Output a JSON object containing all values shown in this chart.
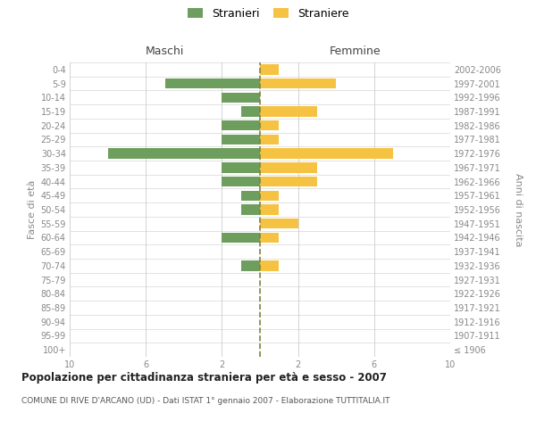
{
  "age_groups": [
    "100+",
    "95-99",
    "90-94",
    "85-89",
    "80-84",
    "75-79",
    "70-74",
    "65-69",
    "60-64",
    "55-59",
    "50-54",
    "45-49",
    "40-44",
    "35-39",
    "30-34",
    "25-29",
    "20-24",
    "15-19",
    "10-14",
    "5-9",
    "0-4"
  ],
  "birth_years": [
    "≤ 1906",
    "1907-1911",
    "1912-1916",
    "1917-1921",
    "1922-1926",
    "1927-1931",
    "1932-1936",
    "1937-1941",
    "1942-1946",
    "1947-1951",
    "1952-1956",
    "1957-1961",
    "1962-1966",
    "1967-1971",
    "1972-1976",
    "1977-1981",
    "1982-1986",
    "1987-1991",
    "1992-1996",
    "1997-2001",
    "2002-2006"
  ],
  "stranieri": [
    0,
    0,
    0,
    0,
    0,
    0,
    1,
    0,
    2,
    0,
    1,
    1,
    2,
    2,
    8,
    2,
    2,
    1,
    2,
    5,
    0
  ],
  "straniere": [
    0,
    0,
    0,
    0,
    0,
    0,
    1,
    0,
    1,
    2,
    1,
    1,
    3,
    3,
    7,
    1,
    1,
    3,
    0,
    4,
    1
  ],
  "stranieri_color": "#6e9e5e",
  "straniere_color": "#f5c242",
  "center_line_color": "#808040",
  "title": "Popolazione per cittadinanza straniera per età e sesso - 2007",
  "subtitle": "COMUNE DI RIVE D'ARCANO (UD) - Dati ISTAT 1° gennaio 2007 - Elaborazione TUTTITALIA.IT",
  "xlabel_left": "Maschi",
  "xlabel_right": "Femmine",
  "ylabel_left": "Fasce di età",
  "ylabel_right": "Anni di nascita",
  "xlim": 10,
  "background_color": "#ffffff",
  "grid_color": "#cccccc",
  "tick_label_color": "#888888"
}
